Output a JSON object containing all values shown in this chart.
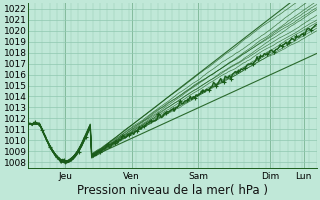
{
  "title": "",
  "xlabel": "Pression niveau de la mer( hPa )",
  "bg_color": "#c0e8d8",
  "grid_color": "#90c8b0",
  "line_color": "#1a5c1a",
  "ylim": [
    1007.5,
    1022.5
  ],
  "yticks": [
    1008,
    1009,
    1010,
    1011,
    1012,
    1013,
    1014,
    1015,
    1016,
    1017,
    1018,
    1019,
    1020,
    1021,
    1022
  ],
  "day_labels": [
    "Jeu",
    "Ven",
    "Sam",
    "Dim",
    "Lun"
  ],
  "day_positions": [
    0.13,
    0.36,
    0.59,
    0.84,
    0.955
  ],
  "xlabel_fontsize": 8.5,
  "tick_fontsize": 6.5,
  "n_points": 200,
  "seed": 42
}
